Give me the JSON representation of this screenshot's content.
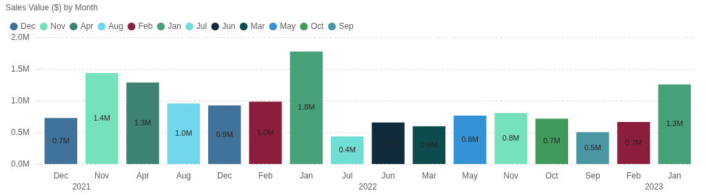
{
  "chart_data": {
    "type": "bar",
    "title": "Sales Value ($) by Month",
    "categories": [
      "Dec",
      "Nov",
      "Apr",
      "Aug",
      "Dec",
      "Feb",
      "Jan",
      "Jul",
      "Jun",
      "Mar",
      "May",
      "Nov",
      "Oct",
      "Sep",
      "Feb",
      "Jan"
    ],
    "years": [
      "2021",
      "2021",
      "2022",
      "2022",
      "2022",
      "2022",
      "2022",
      "2022",
      "2022",
      "2022",
      "2022",
      "2022",
      "2022",
      "2022",
      "2023",
      "2023"
    ],
    "series": [
      {
        "name": "Dec",
        "color": "#41729A",
        "values": [
          730000,
          null,
          null,
          null,
          930000,
          null,
          null,
          null,
          null,
          null,
          null,
          null,
          null,
          null,
          null,
          null
        ],
        "value_labels": [
          "0.7M",
          null,
          null,
          null,
          "0.9M",
          null,
          null,
          null,
          null,
          null,
          null,
          null,
          null,
          null,
          null,
          null
        ]
      },
      {
        "name": "Nov",
        "color": "#76E2BC",
        "values": [
          null,
          1440000,
          null,
          null,
          null,
          null,
          null,
          null,
          null,
          null,
          null,
          810000,
          null,
          null,
          null,
          null
        ],
        "value_labels": [
          null,
          "1.4M",
          null,
          null,
          null,
          null,
          null,
          null,
          null,
          null,
          null,
          "0.8M",
          null,
          null,
          null,
          null
        ]
      },
      {
        "name": "Apr",
        "color": "#3E8273",
        "values": [
          null,
          null,
          1290000,
          null,
          null,
          null,
          null,
          null,
          null,
          null,
          null,
          null,
          null,
          null,
          null,
          null
        ],
        "value_labels": [
          null,
          null,
          "1.3M",
          null,
          null,
          null,
          null,
          null,
          null,
          null,
          null,
          null,
          null,
          null,
          null,
          null
        ]
      },
      {
        "name": "Aug",
        "color": "#6FD6EC",
        "values": [
          null,
          null,
          null,
          960000,
          null,
          null,
          null,
          null,
          null,
          null,
          null,
          null,
          null,
          null,
          null,
          null
        ],
        "value_labels": [
          null,
          null,
          null,
          "1.0M",
          null,
          null,
          null,
          null,
          null,
          null,
          null,
          null,
          null,
          null,
          null,
          null
        ]
      },
      {
        "name": "Feb",
        "color": "#8A1E3C",
        "values": [
          null,
          null,
          null,
          null,
          null,
          990000,
          null,
          null,
          null,
          null,
          null,
          null,
          null,
          null,
          670000,
          null
        ],
        "value_labels": [
          null,
          null,
          null,
          null,
          null,
          "1.0M",
          null,
          null,
          null,
          null,
          null,
          null,
          null,
          null,
          "0.7M",
          null
        ]
      },
      {
        "name": "Jan",
        "color": "#47A178",
        "values": [
          null,
          null,
          null,
          null,
          null,
          null,
          1780000,
          null,
          null,
          null,
          null,
          null,
          null,
          null,
          null,
          1260000
        ],
        "value_labels": [
          null,
          null,
          null,
          null,
          null,
          null,
          "1.8M",
          null,
          null,
          null,
          null,
          null,
          null,
          null,
          null,
          "1.3M"
        ]
      },
      {
        "name": "Jul",
        "color": "#70DED2",
        "values": [
          null,
          null,
          null,
          null,
          null,
          null,
          null,
          440000,
          null,
          null,
          null,
          null,
          null,
          null,
          null,
          null
        ],
        "value_labels": [
          null,
          null,
          null,
          null,
          null,
          null,
          null,
          "0.4M",
          null,
          null,
          null,
          null,
          null,
          null,
          null,
          null
        ]
      },
      {
        "name": "Jun",
        "color": "#112B3C",
        "values": [
          null,
          null,
          null,
          null,
          null,
          null,
          null,
          null,
          660000,
          null,
          null,
          null,
          null,
          null,
          null,
          null
        ],
        "value_labels": [
          null,
          null,
          null,
          null,
          null,
          null,
          null,
          null,
          "0.7M",
          null,
          null,
          null,
          null,
          null,
          null,
          null
        ]
      },
      {
        "name": "Mar",
        "color": "#0D4B4C",
        "values": [
          null,
          null,
          null,
          null,
          null,
          null,
          null,
          null,
          null,
          600000,
          null,
          null,
          null,
          null,
          null,
          null
        ],
        "value_labels": [
          null,
          null,
          null,
          null,
          null,
          null,
          null,
          null,
          null,
          "0.6M",
          null,
          null,
          null,
          null,
          null,
          null
        ]
      },
      {
        "name": "May",
        "color": "#3393D6",
        "values": [
          null,
          null,
          null,
          null,
          null,
          null,
          null,
          null,
          null,
          null,
          770000,
          null,
          null,
          null,
          null,
          null
        ],
        "value_labels": [
          null,
          null,
          null,
          null,
          null,
          null,
          null,
          null,
          null,
          null,
          "0.8M",
          null,
          null,
          null,
          null,
          null
        ]
      },
      {
        "name": "Oct",
        "color": "#3F9A5B",
        "values": [
          null,
          null,
          null,
          null,
          null,
          null,
          null,
          null,
          null,
          null,
          null,
          null,
          720000,
          null,
          null,
          null
        ],
        "value_labels": [
          null,
          null,
          null,
          null,
          null,
          null,
          null,
          null,
          null,
          null,
          null,
          null,
          "0.7M",
          null,
          null,
          null
        ]
      },
      {
        "name": "Sep",
        "color": "#4A97A3",
        "values": [
          null,
          null,
          null,
          null,
          null,
          null,
          null,
          null,
          null,
          null,
          null,
          null,
          null,
          510000,
          null,
          null
        ],
        "value_labels": [
          null,
          null,
          null,
          null,
          null,
          null,
          null,
          null,
          null,
          null,
          null,
          null,
          null,
          "0.5M",
          null,
          null
        ]
      }
    ],
    "ylim": [
      0,
      2000000
    ],
    "yticks": [
      {
        "value": 0,
        "label": "0.0M"
      },
      {
        "value": 500000,
        "label": "0.5M"
      },
      {
        "value": 1000000,
        "label": "1.0M"
      },
      {
        "value": 1500000,
        "label": "1.5M"
      },
      {
        "value": 2000000,
        "label": "2.0M"
      }
    ],
    "grid": true,
    "legend": "top-left",
    "data_labels": true
  }
}
